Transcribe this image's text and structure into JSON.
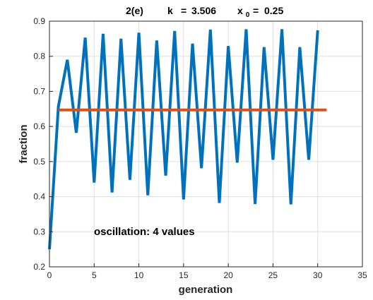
{
  "chart_data": {
    "type": "line",
    "title": "2(e)",
    "title_k_label": "k",
    "title_k_eq": "=",
    "title_k_value": "3.506",
    "title_x0_symbol": "x",
    "title_x0_sub": "0",
    "title_x0_eq": "=",
    "title_x0_value": "0.25",
    "xlabel": "generation",
    "ylabel": "fraction",
    "xlim": [
      0,
      35
    ],
    "ylim": [
      0.2,
      0.9
    ],
    "xticks": [
      "0",
      "5",
      "10",
      "15",
      "20",
      "25",
      "30",
      "35"
    ],
    "yticks": [
      "0.2",
      "0.3",
      "0.4",
      "0.5",
      "0.6",
      "0.7",
      "0.8",
      "0.9"
    ],
    "grid": true,
    "annotation": "oscillation: 4 values",
    "series": [
      {
        "color": "#0072bd",
        "x": [
          0,
          1,
          2,
          3,
          4,
          5,
          6,
          7,
          8,
          9,
          10,
          11,
          12,
          13,
          14,
          15,
          16,
          17,
          18,
          19,
          20,
          21,
          22,
          23,
          24,
          25,
          26,
          27,
          28,
          29,
          30
        ],
        "y": [
          0.25,
          0.657,
          0.79,
          0.582,
          0.853,
          0.44,
          0.864,
          0.412,
          0.85,
          0.448,
          0.867,
          0.404,
          0.845,
          0.46,
          0.872,
          0.392,
          0.836,
          0.481,
          0.876,
          0.382,
          0.829,
          0.497,
          0.877,
          0.379,
          0.826,
          0.505,
          0.877,
          0.378,
          0.826,
          0.505,
          0.874
        ]
      },
      {
        "color": "#d95319",
        "x": [
          1,
          31
        ],
        "y": [
          0.647,
          0.647
        ]
      }
    ]
  }
}
